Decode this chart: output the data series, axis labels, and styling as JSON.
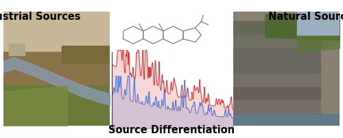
{
  "title_left": "Industrial Sources",
  "title_right": "Natural Sources",
  "title_bottom": "Source Differentiation",
  "background_color": "#ffffff",
  "red_color": "#cc2222",
  "blue_color": "#4466cc",
  "mol_color": "#888888",
  "fig_width": 5.0,
  "fig_height": 2.03,
  "dpi": 100
}
